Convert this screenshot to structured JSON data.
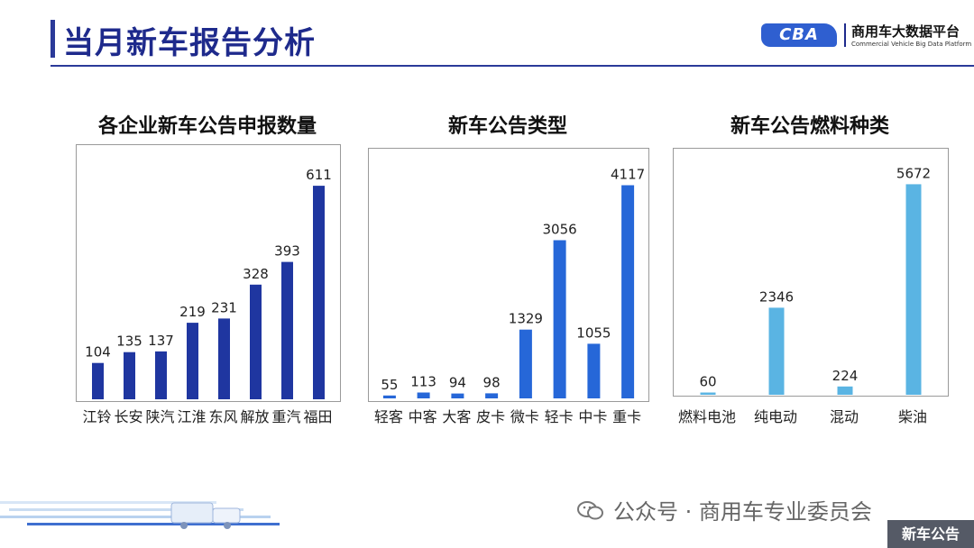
{
  "header": {
    "title": "当月新车报告分析",
    "logo_mark": "CBA",
    "logo_cn": "商用车大数据平台",
    "logo_en": "Commercial Vehicle Big Data Platform"
  },
  "footer": {
    "wechat": "公众号 · 商用车专业委员会",
    "tag": "新车公告"
  },
  "colors": {
    "title": "#1e2a8c",
    "bar_dark_blue": "#1f36a0",
    "bar_blue": "#2667d8",
    "bar_light_blue": "#5ab4e3"
  },
  "chart_data": [
    {
      "type": "bar",
      "title": "各企业新车公告申报数量",
      "categories": [
        "江铃",
        "长安",
        "陕汽",
        "江淮",
        "东风",
        "解放",
        "重汽",
        "福田"
      ],
      "values": [
        104,
        135,
        137,
        219,
        231,
        328,
        393,
        611
      ],
      "color": "#1f36a0",
      "ylim": [
        0,
        650
      ],
      "grid": false
    },
    {
      "type": "bar",
      "title": "新车公告类型",
      "categories": [
        "轻客",
        "中客",
        "大客",
        "皮卡",
        "微卡",
        "轻卡",
        "中卡",
        "重卡"
      ],
      "values": [
        55,
        113,
        94,
        98,
        1329,
        3056,
        1055,
        4117
      ],
      "color": "#2667d8",
      "ylim": [
        0,
        4300
      ],
      "grid": false
    },
    {
      "type": "bar",
      "title": "新车公告燃料种类",
      "categories": [
        "燃料电池",
        "纯电动",
        "混动",
        "柴油"
      ],
      "values": [
        60,
        2346,
        224,
        5672
      ],
      "color": "#5ab4e3",
      "ylim": [
        0,
        5900
      ],
      "grid": false
    }
  ]
}
